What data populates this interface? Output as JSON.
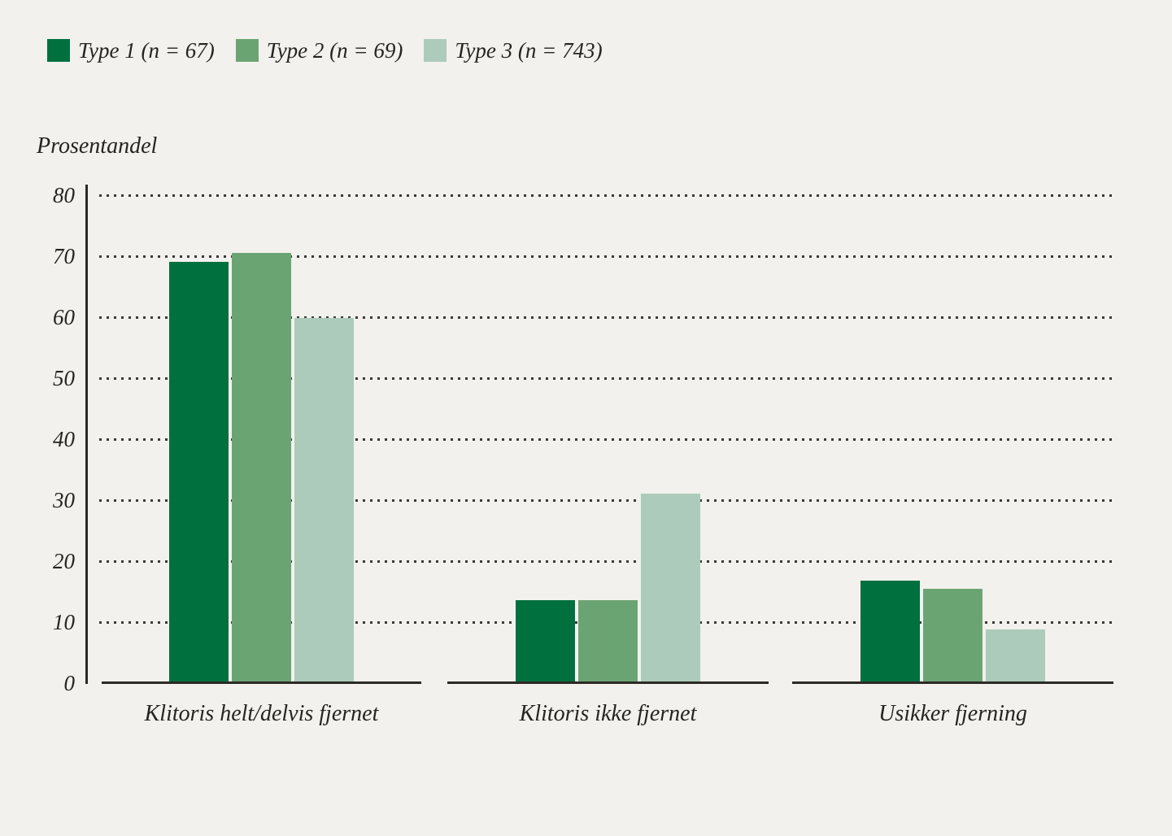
{
  "legend": {
    "items": [
      {
        "label": "Type 1 (n = 67)",
        "color": "#00703F"
      },
      {
        "label": "Type 2 (n = 69)",
        "color": "#6BA473"
      },
      {
        "label": "Type 3 (n = 743)",
        "color": "#ADCBBA"
      }
    ]
  },
  "y_axis_title": "Prosentandel",
  "chart_data": {
    "type": "bar",
    "title": "",
    "xlabel": "",
    "ylabel": "Prosentandel",
    "ylim": [
      0,
      80
    ],
    "yticks": [
      0,
      10,
      20,
      30,
      40,
      50,
      60,
      70,
      80
    ],
    "grid": "dotted-horizontal",
    "legend_position": "top-left",
    "categories": [
      "Klitoris helt/delvis fjernet",
      "Klitoris ikke fjernet",
      "Usikker fjerning"
    ],
    "series": [
      {
        "name": "Type 1 (n = 67)",
        "color": "#00703F",
        "values": [
          69.1,
          13.6,
          16.8
        ]
      },
      {
        "name": "Type 2 (n = 69)",
        "color": "#6BA473",
        "values": [
          70.5,
          13.6,
          15.4
        ]
      },
      {
        "name": "Type 3 (n = 743)",
        "color": "#ADCBBA",
        "values": [
          59.9,
          31.0,
          8.8
        ]
      }
    ]
  },
  "colors": {
    "background": "#F2F1ED",
    "axis": "#2B2A25",
    "grid_dot": "#3A3935",
    "text": "#25241F"
  }
}
